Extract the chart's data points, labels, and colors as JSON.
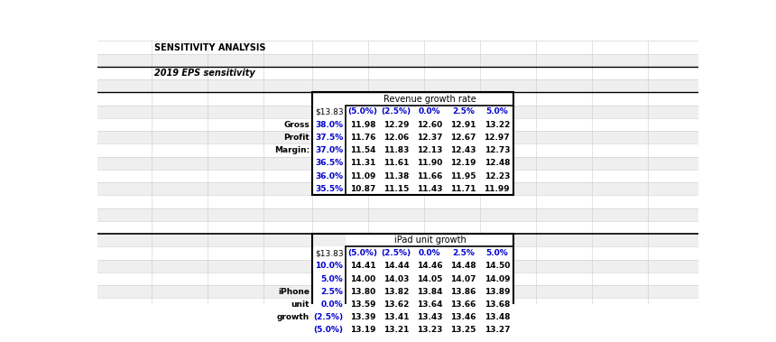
{
  "title1": "SENSITIVITY ANALYSIS",
  "title2": "2019 EPS sensitivity",
  "section1_header": "Revenue growth rate",
  "section2_header": "iPad unit growth",
  "col_headers": [
    "$13.83",
    "(5.0%)",
    "(2.5%)",
    "0.0%",
    "2.5%",
    "5.0%"
  ],
  "table1_data": [
    [
      "38.0%",
      "11.98",
      "12.29",
      "12.60",
      "12.91",
      "13.22"
    ],
    [
      "37.5%",
      "11.76",
      "12.06",
      "12.37",
      "12.67",
      "12.97"
    ],
    [
      "37.0%",
      "11.54",
      "11.83",
      "12.13",
      "12.43",
      "12.73"
    ],
    [
      "36.5%",
      "11.31",
      "11.61",
      "11.90",
      "12.19",
      "12.48"
    ],
    [
      "36.0%",
      "11.09",
      "11.38",
      "11.66",
      "11.95",
      "12.23"
    ],
    [
      "35.5%",
      "10.87",
      "11.15",
      "11.43",
      "11.71",
      "11.99"
    ]
  ],
  "table1_left_labels": {
    "0": "Gross",
    "1": "Profit",
    "2": "Margin:"
  },
  "table2_data": [
    [
      "10.0%",
      "14.41",
      "14.44",
      "14.46",
      "14.48",
      "14.50"
    ],
    [
      "5.0%",
      "14.00",
      "14.03",
      "14.05",
      "14.07",
      "14.09"
    ],
    [
      "2.5%",
      "13.80",
      "13.82",
      "13.84",
      "13.86",
      "13.89"
    ],
    [
      "0.0%",
      "13.59",
      "13.62",
      "13.64",
      "13.66",
      "13.68"
    ],
    [
      "(2.5%)",
      "13.39",
      "13.41",
      "13.43",
      "13.46",
      "13.48"
    ],
    [
      "(5.0%)",
      "13.19",
      "13.21",
      "13.23",
      "13.25",
      "13.27"
    ]
  ],
  "table2_left_labels": {
    "2": "iPhone",
    "3": "unit",
    "4": "growth"
  },
  "blue_color": "#0000CC",
  "black_color": "#000000",
  "bg_color": "#FFFFFF",
  "stripe_light": "#F0F0F0",
  "stripe_dark": "#E0E0E0",
  "border_color": "#000000"
}
